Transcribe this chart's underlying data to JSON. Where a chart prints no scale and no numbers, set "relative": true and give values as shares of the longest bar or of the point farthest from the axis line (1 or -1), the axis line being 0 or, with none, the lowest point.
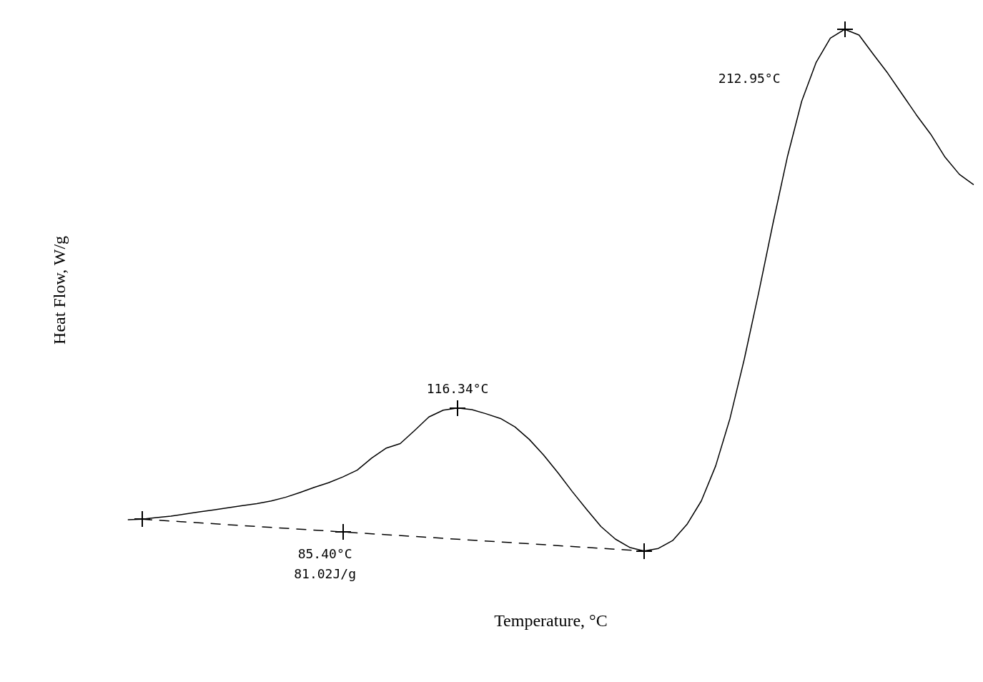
{
  "chart_data": {
    "type": "line",
    "xlabel": "Temperature, °C",
    "ylabel": "Heat Flow, W/g",
    "relative": true,
    "legend": false,
    "categories": [
      null,
      null,
      null,
      null,
      null,
      null,
      null,
      null,
      null,
      null,
      null,
      null,
      null,
      null,
      null,
      null,
      null,
      null,
      null,
      null,
      null,
      null,
      null,
      null,
      null,
      null,
      null,
      null,
      null,
      null,
      null,
      null,
      null,
      null,
      null,
      null,
      null,
      null,
      null,
      null,
      null,
      null,
      null,
      null,
      null,
      null,
      null,
      null,
      null,
      null,
      null,
      null,
      null,
      null,
      null,
      null,
      null,
      null,
      null,
      null
    ],
    "series": [
      {
        "type": "line",
        "color": "#000000",
        "marker": "none",
        "line_style": "solid",
        "values": [
          0.06,
          0.061,
          0.064,
          0.067,
          0.071,
          0.075,
          0.079,
          0.083,
          0.087,
          0.091,
          0.096,
          0.103,
          0.112,
          0.122,
          0.131,
          0.142,
          0.155,
          0.178,
          0.197,
          0.206,
          0.231,
          0.257,
          0.27,
          0.274,
          0.271,
          0.263,
          0.254,
          0.238,
          0.214,
          0.184,
          0.15,
          0.114,
          0.08,
          0.047,
          0.023,
          0.007,
          0,
          0.005,
          0.02,
          0.051,
          0.096,
          0.163,
          0.254,
          0.368,
          0.495,
          0.628,
          0.755,
          0.862,
          0.936,
          0.983,
          1,
          0.989,
          0.952,
          0.916,
          0.876,
          0.836,
          0.799,
          0.755,
          0.722,
          0.702
        ]
      },
      {
        "type": "line",
        "color": "#000000",
        "marker": "none",
        "line_style": "dashed",
        "values": [
          null,
          0.061,
          null,
          null,
          null,
          null,
          null,
          null,
          null,
          null,
          null,
          null,
          null,
          null,
          null,
          null,
          null,
          null,
          null,
          null,
          null,
          null,
          null,
          null,
          null,
          null,
          null,
          null,
          null,
          null,
          null,
          null,
          null,
          null,
          null,
          null,
          0,
          null,
          null,
          null,
          null,
          null,
          null,
          null,
          null,
          null,
          null,
          null,
          null,
          null,
          null,
          null,
          null,
          null,
          null,
          null,
          null,
          null,
          null,
          null
        ]
      }
    ],
    "annotations": [
      "116.34°C",
      "212.95°C",
      "85.40°C",
      "81.02J/g"
    ]
  }
}
